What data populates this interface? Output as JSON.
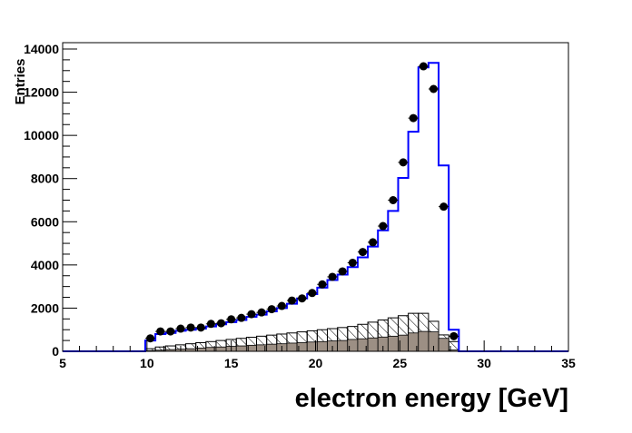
{
  "chart_data": {
    "type": "bar",
    "xlabel": "electron energy [GeV]",
    "ylabel": "Entries",
    "xlim": [
      5,
      35
    ],
    "ylim": [
      0,
      14000
    ],
    "x_ticks": [
      "5",
      "10",
      "15",
      "20",
      "25",
      "30",
      "35"
    ],
    "y_ticks": [
      "0",
      "2000",
      "4000",
      "6000",
      "8000",
      "10000",
      "12000",
      "14000"
    ],
    "grid": false,
    "bin_edges_start": 9.9,
    "bin_width": 0.6,
    "series": [
      {
        "style": "step",
        "color": "#0000ff",
        "values": [
          500,
          800,
          850,
          950,
          1000,
          1050,
          1150,
          1250,
          1350,
          1450,
          1600,
          1700,
          1850,
          2000,
          2200,
          2450,
          2650,
          2950,
          3300,
          3550,
          3900,
          4350,
          4850,
          5600,
          6500,
          8030,
          10170,
          13150,
          13360,
          8610,
          1000
        ]
      },
      {
        "style": "hatched",
        "color": "#000000",
        "values": [
          120,
          200,
          250,
          300,
          350,
          400,
          450,
          500,
          550,
          600,
          650,
          700,
          750,
          800,
          850,
          900,
          950,
          1000,
          1050,
          1100,
          1150,
          1250,
          1350,
          1450,
          1550,
          1650,
          1760,
          1760,
          1390,
          760,
          450
        ]
      },
      {
        "style": "filled",
        "color": "#9c8f84",
        "values": [
          30,
          50,
          80,
          100,
          120,
          150,
          180,
          200,
          230,
          250,
          280,
          300,
          330,
          350,
          380,
          400,
          430,
          450,
          480,
          500,
          550,
          580,
          620,
          660,
          700,
          750,
          850,
          920,
          900,
          600,
          60
        ]
      },
      {
        "style": "points",
        "color": "#000000",
        "values": [
          600,
          920,
          920,
          1050,
          1100,
          1100,
          1270,
          1300,
          1480,
          1550,
          1720,
          1800,
          1950,
          2100,
          2350,
          2450,
          2700,
          3100,
          3450,
          3700,
          4100,
          4600,
          5050,
          5800,
          7000,
          8750,
          10800,
          13200,
          12150,
          6700,
          700
        ]
      }
    ]
  }
}
